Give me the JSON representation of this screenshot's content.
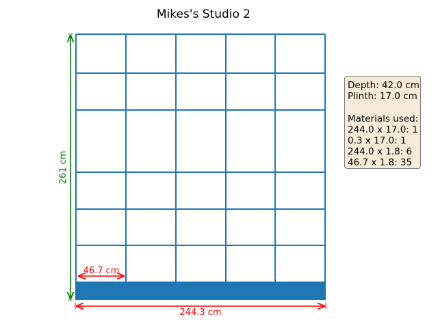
{
  "title": "Mikes's Studio 2",
  "dimensions": {
    "height_label": "261 cm",
    "width_label": "244.3 cm",
    "shelf_width_label": "46.7 cm"
  },
  "info": {
    "depth": "Depth: 42.0 cm",
    "plinth": "Plinth: 17.0 cm",
    "materials_heading": "Materials used:",
    "materials": [
      "244.0 x 17.0: 1",
      "0.3 x 17.0: 1",
      "244.0 x 1.8: 6",
      "46.7 x 1.8: 35"
    ]
  },
  "colors": {
    "structure": "#1f77b4",
    "height_dimension": "#008000",
    "width_dimension": "#ff0000",
    "info_background": "#f6ebd8"
  }
}
